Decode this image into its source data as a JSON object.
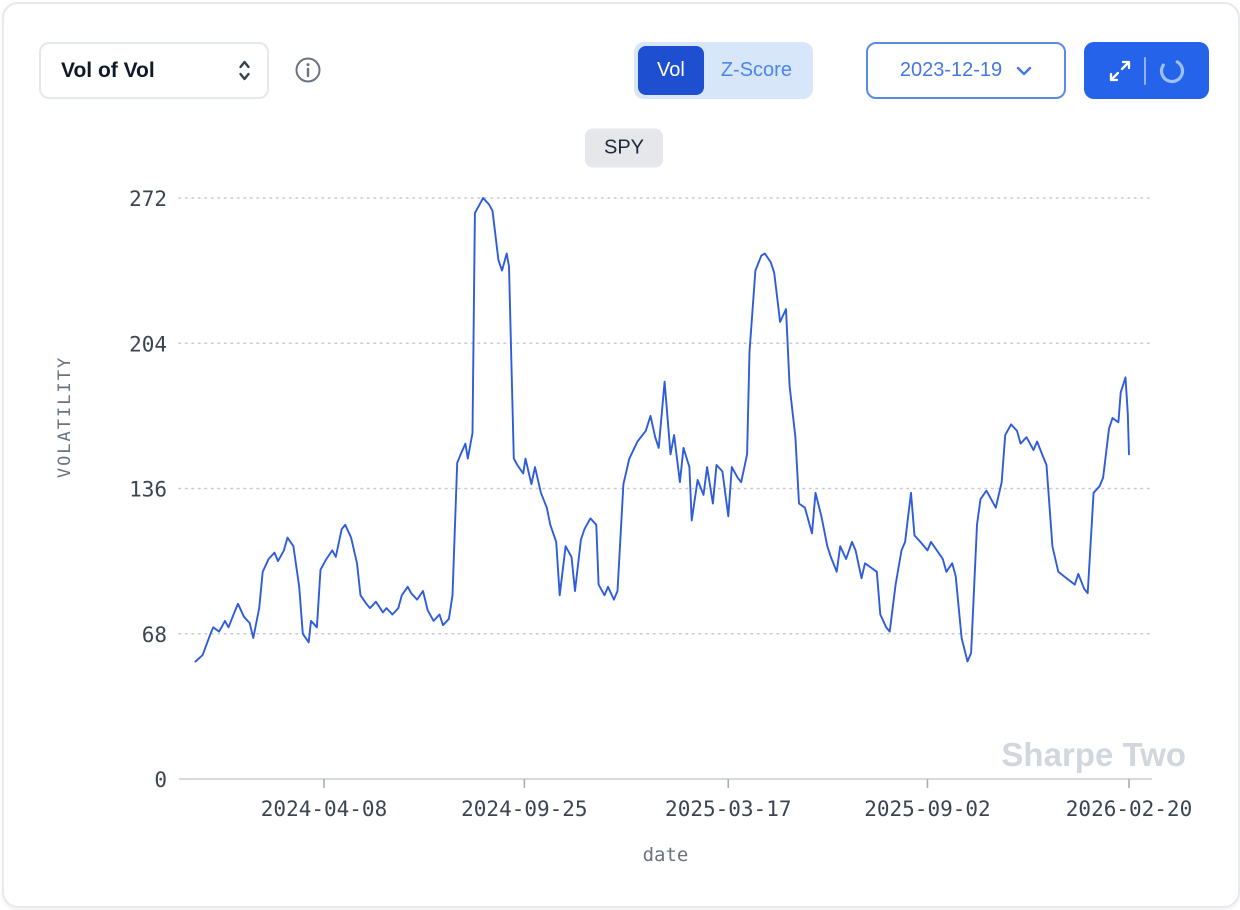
{
  "header": {
    "metric_select": {
      "value": "Vol of Vol"
    },
    "info_icon": "info-circle-icon",
    "mode_toggle": {
      "options": [
        "Vol",
        "Z-Score"
      ],
      "active": "Vol"
    },
    "date_select": {
      "value": "2023-12-19"
    },
    "action_icons": [
      "expand-icon",
      "spinner-icon"
    ]
  },
  "colors": {
    "line": "#2e5cdb",
    "toggle_active_bg": "#1d4fd0",
    "toggle_bg": "#d8e6f9",
    "accent_button_bg": "#2563eb",
    "date_accent": "#4477e0",
    "watermark": "#d2d6dd"
  },
  "chart_data": {
    "type": "line",
    "title": "SPY",
    "xlabel": "date",
    "ylabel": "VOLATILITY",
    "ylim": [
      0,
      285
    ],
    "y_ticks": [
      0,
      68,
      136,
      204,
      272
    ],
    "x_ticks": [
      "2024-04-08",
      "2024-09-25",
      "2025-03-17",
      "2025-09-02",
      "2026-02-20"
    ],
    "grid": "horizontal-dotted",
    "legend": "none",
    "watermark": "Sharpe Two",
    "series": [
      {
        "name": "SPY",
        "color": "#2e5cdb",
        "points": [
          [
            "2023-12-21",
            55
          ],
          [
            "2023-12-27",
            58
          ],
          [
            "2024-01-02",
            67
          ],
          [
            "2024-01-05",
            71
          ],
          [
            "2024-01-10",
            69
          ],
          [
            "2024-01-15",
            74
          ],
          [
            "2024-01-18",
            71
          ],
          [
            "2024-01-23",
            78
          ],
          [
            "2024-01-26",
            82
          ],
          [
            "2024-01-31",
            76
          ],
          [
            "2024-02-05",
            73
          ],
          [
            "2024-02-08",
            66
          ],
          [
            "2024-02-13",
            80
          ],
          [
            "2024-02-16",
            97
          ],
          [
            "2024-02-21",
            103
          ],
          [
            "2024-02-26",
            106
          ],
          [
            "2024-02-29",
            102
          ],
          [
            "2024-03-05",
            107
          ],
          [
            "2024-03-08",
            113
          ],
          [
            "2024-03-13",
            109
          ],
          [
            "2024-03-18",
            90
          ],
          [
            "2024-03-21",
            68
          ],
          [
            "2024-03-26",
            64
          ],
          [
            "2024-03-28",
            74
          ],
          [
            "2024-04-02",
            71
          ],
          [
            "2024-04-05",
            98
          ],
          [
            "2024-04-10",
            103
          ],
          [
            "2024-04-15",
            107
          ],
          [
            "2024-04-18",
            104
          ],
          [
            "2024-04-23",
            117
          ],
          [
            "2024-04-26",
            119
          ],
          [
            "2024-05-01",
            113
          ],
          [
            "2024-05-06",
            101
          ],
          [
            "2024-05-09",
            86
          ],
          [
            "2024-05-14",
            82
          ],
          [
            "2024-05-17",
            80
          ],
          [
            "2024-05-22",
            83
          ],
          [
            "2024-05-28",
            78
          ],
          [
            "2024-05-31",
            80
          ],
          [
            "2024-06-05",
            77
          ],
          [
            "2024-06-10",
            80
          ],
          [
            "2024-06-13",
            86
          ],
          [
            "2024-06-18",
            90
          ],
          [
            "2024-06-21",
            87
          ],
          [
            "2024-06-26",
            84
          ],
          [
            "2024-07-01",
            88
          ],
          [
            "2024-07-05",
            79
          ],
          [
            "2024-07-10",
            74
          ],
          [
            "2024-07-15",
            77
          ],
          [
            "2024-07-18",
            72
          ],
          [
            "2024-07-23",
            75
          ],
          [
            "2024-07-26",
            86
          ],
          [
            "2024-07-30",
            148
          ],
          [
            "2024-08-02",
            152
          ],
          [
            "2024-08-06",
            157
          ],
          [
            "2024-08-08",
            150
          ],
          [
            "2024-08-12",
            162
          ],
          [
            "2024-08-14",
            265
          ],
          [
            "2024-08-19",
            270
          ],
          [
            "2024-08-21",
            272
          ],
          [
            "2024-08-26",
            269
          ],
          [
            "2024-08-29",
            266
          ],
          [
            "2024-09-03",
            243
          ],
          [
            "2024-09-06",
            238
          ],
          [
            "2024-09-10",
            246
          ],
          [
            "2024-09-12",
            240
          ],
          [
            "2024-09-16",
            150
          ],
          [
            "2024-09-19",
            147
          ],
          [
            "2024-09-24",
            143
          ],
          [
            "2024-09-26",
            150
          ],
          [
            "2024-10-01",
            138
          ],
          [
            "2024-10-04",
            146
          ],
          [
            "2024-10-09",
            134
          ],
          [
            "2024-10-14",
            127
          ],
          [
            "2024-10-17",
            119
          ],
          [
            "2024-10-22",
            111
          ],
          [
            "2024-10-25",
            86
          ],
          [
            "2024-10-30",
            109
          ],
          [
            "2024-11-04",
            104
          ],
          [
            "2024-11-07",
            88
          ],
          [
            "2024-11-12",
            112
          ],
          [
            "2024-11-15",
            117
          ],
          [
            "2024-11-20",
            122
          ],
          [
            "2024-11-25",
            119
          ],
          [
            "2024-11-27",
            91
          ],
          [
            "2024-12-02",
            86
          ],
          [
            "2024-12-05",
            90
          ],
          [
            "2024-12-10",
            84
          ],
          [
            "2024-12-13",
            88
          ],
          [
            "2024-12-18",
            138
          ],
          [
            "2024-12-23",
            150
          ],
          [
            "2024-12-30",
            158
          ],
          [
            "2025-01-06",
            163
          ],
          [
            "2025-01-10",
            170
          ],
          [
            "2025-01-14",
            160
          ],
          [
            "2025-01-17",
            155
          ],
          [
            "2025-01-22",
            186
          ],
          [
            "2025-01-27",
            152
          ],
          [
            "2025-01-30",
            161
          ],
          [
            "2025-02-04",
            139
          ],
          [
            "2025-02-07",
            155
          ],
          [
            "2025-02-12",
            146
          ],
          [
            "2025-02-14",
            121
          ],
          [
            "2025-02-19",
            140
          ],
          [
            "2025-02-24",
            133
          ],
          [
            "2025-02-27",
            146
          ],
          [
            "2025-03-04",
            129
          ],
          [
            "2025-03-07",
            147
          ],
          [
            "2025-03-12",
            144
          ],
          [
            "2025-03-17",
            123
          ],
          [
            "2025-03-20",
            146
          ],
          [
            "2025-03-25",
            141
          ],
          [
            "2025-03-28",
            139
          ],
          [
            "2025-04-02",
            152
          ],
          [
            "2025-04-04",
            200
          ],
          [
            "2025-04-09",
            238
          ],
          [
            "2025-04-14",
            245
          ],
          [
            "2025-04-17",
            246
          ],
          [
            "2025-04-22",
            242
          ],
          [
            "2025-04-25",
            237
          ],
          [
            "2025-04-30",
            214
          ],
          [
            "2025-05-05",
            220
          ],
          [
            "2025-05-08",
            184
          ],
          [
            "2025-05-13",
            160
          ],
          [
            "2025-05-16",
            129
          ],
          [
            "2025-05-21",
            127
          ],
          [
            "2025-05-27",
            115
          ],
          [
            "2025-05-30",
            134
          ],
          [
            "2025-06-04",
            123
          ],
          [
            "2025-06-09",
            109
          ],
          [
            "2025-06-12",
            104
          ],
          [
            "2025-06-17",
            97
          ],
          [
            "2025-06-20",
            109
          ],
          [
            "2025-06-25",
            103
          ],
          [
            "2025-06-30",
            111
          ],
          [
            "2025-07-03",
            107
          ],
          [
            "2025-07-08",
            94
          ],
          [
            "2025-07-11",
            101
          ],
          [
            "2025-07-16",
            99
          ],
          [
            "2025-07-21",
            97
          ],
          [
            "2025-07-24",
            77
          ],
          [
            "2025-07-29",
            71
          ],
          [
            "2025-08-01",
            69
          ],
          [
            "2025-08-06",
            91
          ],
          [
            "2025-08-11",
            107
          ],
          [
            "2025-08-14",
            111
          ],
          [
            "2025-08-19",
            134
          ],
          [
            "2025-08-22",
            114
          ],
          [
            "2025-08-27",
            111
          ],
          [
            "2025-09-02",
            107
          ],
          [
            "2025-09-05",
            111
          ],
          [
            "2025-09-10",
            107
          ],
          [
            "2025-09-15",
            103
          ],
          [
            "2025-09-18",
            97
          ],
          [
            "2025-09-23",
            101
          ],
          [
            "2025-09-26",
            95
          ],
          [
            "2025-10-01",
            66
          ],
          [
            "2025-10-06",
            55
          ],
          [
            "2025-10-09",
            59
          ],
          [
            "2025-10-14",
            119
          ],
          [
            "2025-10-17",
            131
          ],
          [
            "2025-10-22",
            135
          ],
          [
            "2025-10-27",
            130
          ],
          [
            "2025-10-30",
            127
          ],
          [
            "2025-11-04",
            139
          ],
          [
            "2025-11-07",
            161
          ],
          [
            "2025-11-12",
            166
          ],
          [
            "2025-11-17",
            163
          ],
          [
            "2025-11-20",
            157
          ],
          [
            "2025-11-25",
            160
          ],
          [
            "2025-12-01",
            154
          ],
          [
            "2025-12-04",
            158
          ],
          [
            "2025-12-09",
            151
          ],
          [
            "2025-12-12",
            147
          ],
          [
            "2025-12-17",
            109
          ],
          [
            "2025-12-22",
            97
          ],
          [
            "2025-12-29",
            94
          ],
          [
            "2026-01-05",
            91
          ],
          [
            "2026-01-08",
            96
          ],
          [
            "2026-01-13",
            89
          ],
          [
            "2026-01-16",
            87
          ],
          [
            "2026-01-21",
            134
          ],
          [
            "2026-01-26",
            137
          ],
          [
            "2026-01-29",
            141
          ],
          [
            "2026-02-03",
            164
          ],
          [
            "2026-02-06",
            169
          ],
          [
            "2026-02-11",
            167
          ],
          [
            "2026-02-13",
            181
          ],
          [
            "2026-02-17",
            188
          ],
          [
            "2026-02-19",
            171
          ],
          [
            "2026-02-20",
            152
          ]
        ]
      }
    ]
  }
}
